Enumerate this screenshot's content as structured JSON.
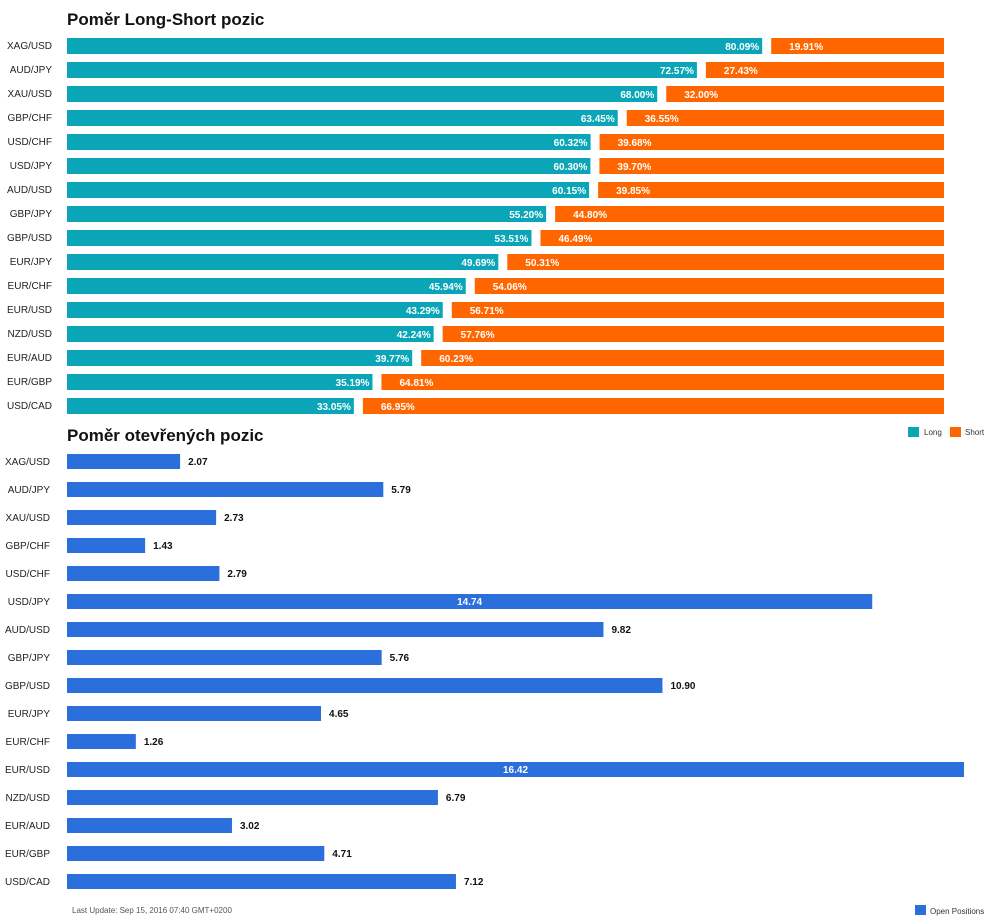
{
  "colors": {
    "long": "#0aa6b8",
    "short": "#ff6600",
    "open": "#2a6fdb"
  },
  "chart_data": [
    {
      "type": "bar",
      "stacked": true,
      "orientation": "horizontal",
      "title": "Poměr Long-Short pozic",
      "categories": [
        "XAG/USD",
        "AUD/JPY",
        "XAU/USD",
        "GBP/CHF",
        "USD/CHF",
        "USD/JPY",
        "AUD/USD",
        "GBP/JPY",
        "GBP/USD",
        "EUR/JPY",
        "EUR/CHF",
        "EUR/USD",
        "NZD/USD",
        "EUR/AUD",
        "EUR/GBP",
        "USD/CAD"
      ],
      "series": [
        {
          "name": "Long",
          "values": [
            80.09,
            72.57,
            68.0,
            63.45,
            60.32,
            60.3,
            60.15,
            55.2,
            53.51,
            49.69,
            45.94,
            43.29,
            42.24,
            39.77,
            35.19,
            33.05
          ],
          "labels": [
            "80.09%",
            "72.57%",
            "68.00%",
            "63.45%",
            "60.32%",
            "60.30%",
            "60.15%",
            "55.20%",
            "53.51%",
            "49.69%",
            "45.94%",
            "43.29%",
            "42.24%",
            "39.77%",
            "35.19%",
            "33.05%"
          ]
        },
        {
          "name": "Short",
          "values": [
            19.91,
            27.43,
            32.0,
            36.55,
            39.68,
            39.7,
            39.85,
            44.8,
            46.49,
            50.31,
            54.06,
            56.71,
            57.76,
            60.23,
            64.81,
            66.95
          ],
          "labels": [
            "19.91%",
            "27.43%",
            "32.00%",
            "36.55%",
            "39.68%",
            "39.70%",
            "39.85%",
            "44.80%",
            "46.49%",
            "50.31%",
            "54.06%",
            "56.71%",
            "57.76%",
            "60.23%",
            "64.81%",
            "66.95%"
          ]
        }
      ],
      "legend_position": "bottom-right"
    },
    {
      "type": "bar",
      "orientation": "horizontal",
      "title": "Poměr otevřených pozic",
      "categories": [
        "XAG/USD",
        "AUD/JPY",
        "XAU/USD",
        "GBP/CHF",
        "USD/CHF",
        "USD/JPY",
        "AUD/USD",
        "GBP/JPY",
        "GBP/USD",
        "EUR/JPY",
        "EUR/CHF",
        "EUR/USD",
        "NZD/USD",
        "EUR/AUD",
        "EUR/GBP",
        "USD/CAD"
      ],
      "series": [
        {
          "name": "Open Positions",
          "values": [
            2.07,
            5.79,
            2.73,
            1.43,
            2.79,
            14.74,
            9.82,
            5.76,
            10.9,
            4.65,
            1.26,
            16.42,
            6.79,
            3.02,
            4.71,
            7.12
          ],
          "labels": [
            "2.07",
            "5.79",
            "2.73",
            "1.43",
            "2.79",
            "14.74",
            "9.82",
            "5.76",
            "10.90",
            "4.65",
            "1.26",
            "16.42",
            "6.79",
            "3.02",
            "4.71",
            "7.12"
          ]
        }
      ],
      "xlim": [
        0,
        16.42
      ],
      "legend_position": "bottom-right"
    }
  ],
  "footer": {
    "last_update": "Last Update: Sep 15, 2016 07:40 GMT+0200"
  }
}
